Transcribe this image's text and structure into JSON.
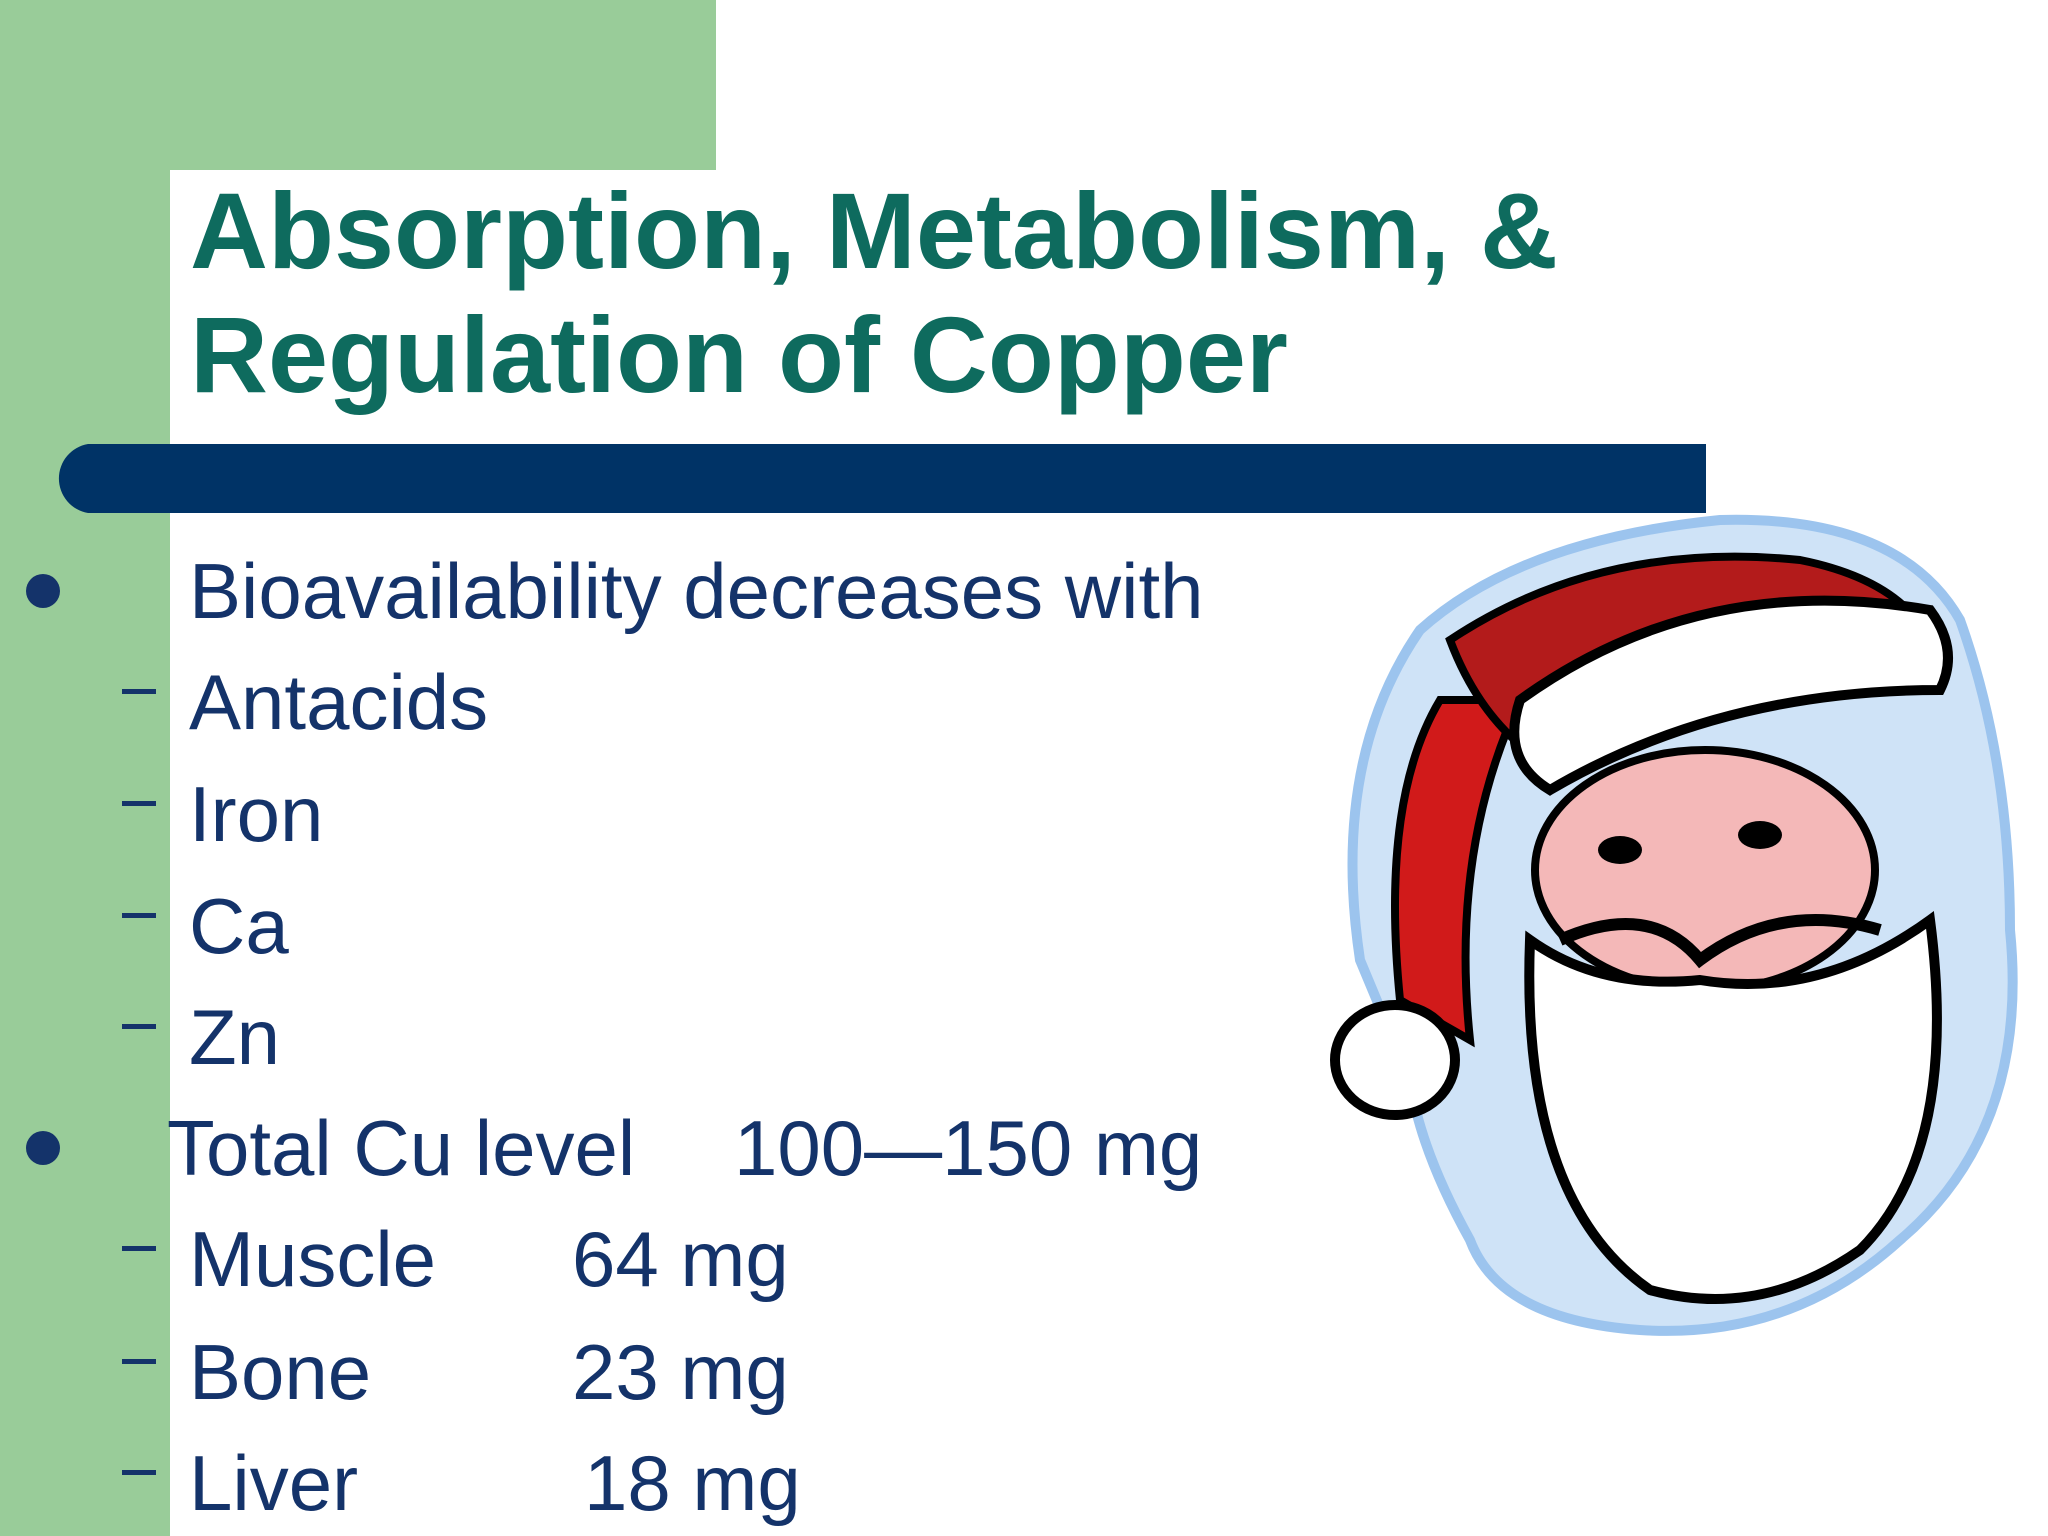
{
  "header": {
    "title_lines": [
      "Absorption, Metabolism, &",
      "Regulation of Copper"
    ]
  },
  "bullets": [
    {
      "text": "Bioavailability decreases with",
      "subitems": [
        {
          "label": "Antacids"
        },
        {
          "label": "Iron"
        },
        {
          "label": "Ca"
        },
        {
          "label": "Zn"
        }
      ]
    },
    {
      "text": "Total Cu level",
      "amount": "100—150 mg",
      "subitems": [
        {
          "label": "Muscle",
          "amount": "64 mg"
        },
        {
          "label": "Bone",
          "amount": "23 mg"
        },
        {
          "label": "Liver",
          "amount": "18 mg"
        }
      ]
    }
  ]
}
